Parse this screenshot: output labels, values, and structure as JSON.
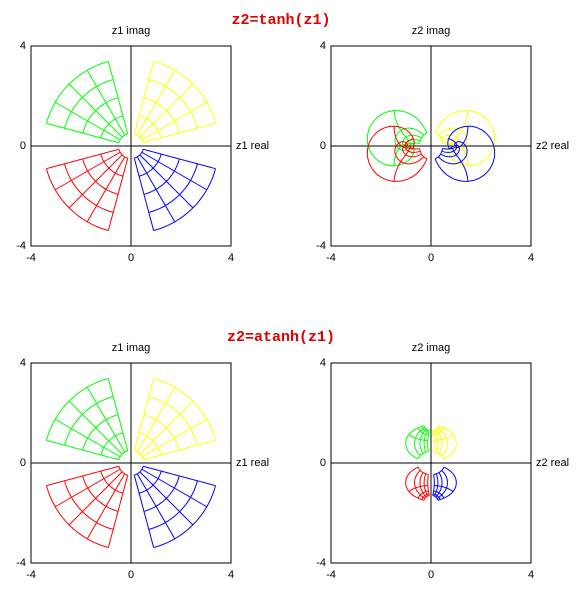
{
  "chart_data": [
    {
      "type": "grid",
      "title": "z2=tanh(z1)",
      "xlabel": "z1 real",
      "ylabel": "z1 imag",
      "xlim": [
        -4,
        4
      ],
      "ylim": [
        -4,
        4
      ],
      "xticks": [
        -4,
        0,
        4
      ],
      "yticks": [
        -4,
        0,
        4
      ],
      "colors": [
        "#ffff00",
        "#00ff00",
        "#ff0000",
        "#0000ff"
      ]
    },
    {
      "type": "tanh",
      "xlabel": "z2 real",
      "ylabel": "z2 imag",
      "xlim": [
        -4,
        4
      ],
      "ylim": [
        -4,
        4
      ],
      "xticks": [
        -4,
        0,
        4
      ],
      "yticks": [
        -4,
        0,
        4
      ],
      "colors": [
        "#ffff00",
        "#00ff00",
        "#ff0000",
        "#0000ff"
      ]
    },
    {
      "type": "grid",
      "title": "z2=atanh(z1)",
      "xlabel": "z1 real",
      "ylabel": "z1 imag",
      "xlim": [
        -4,
        4
      ],
      "ylim": [
        -4,
        4
      ],
      "xticks": [
        -4,
        0,
        4
      ],
      "yticks": [
        -4,
        0,
        4
      ],
      "colors": [
        "#ffff00",
        "#00ff00",
        "#ff0000",
        "#0000ff"
      ]
    },
    {
      "type": "atanh",
      "xlabel": "z2 real",
      "ylabel": "z2 imag",
      "xlim": [
        -4,
        4
      ],
      "ylim": [
        -4,
        4
      ],
      "xticks": [
        -4,
        0,
        4
      ],
      "yticks": [
        -4,
        0,
        4
      ],
      "colors": [
        "#ffff00",
        "#00ff00",
        "#ff0000",
        "#0000ff"
      ]
    }
  ]
}
